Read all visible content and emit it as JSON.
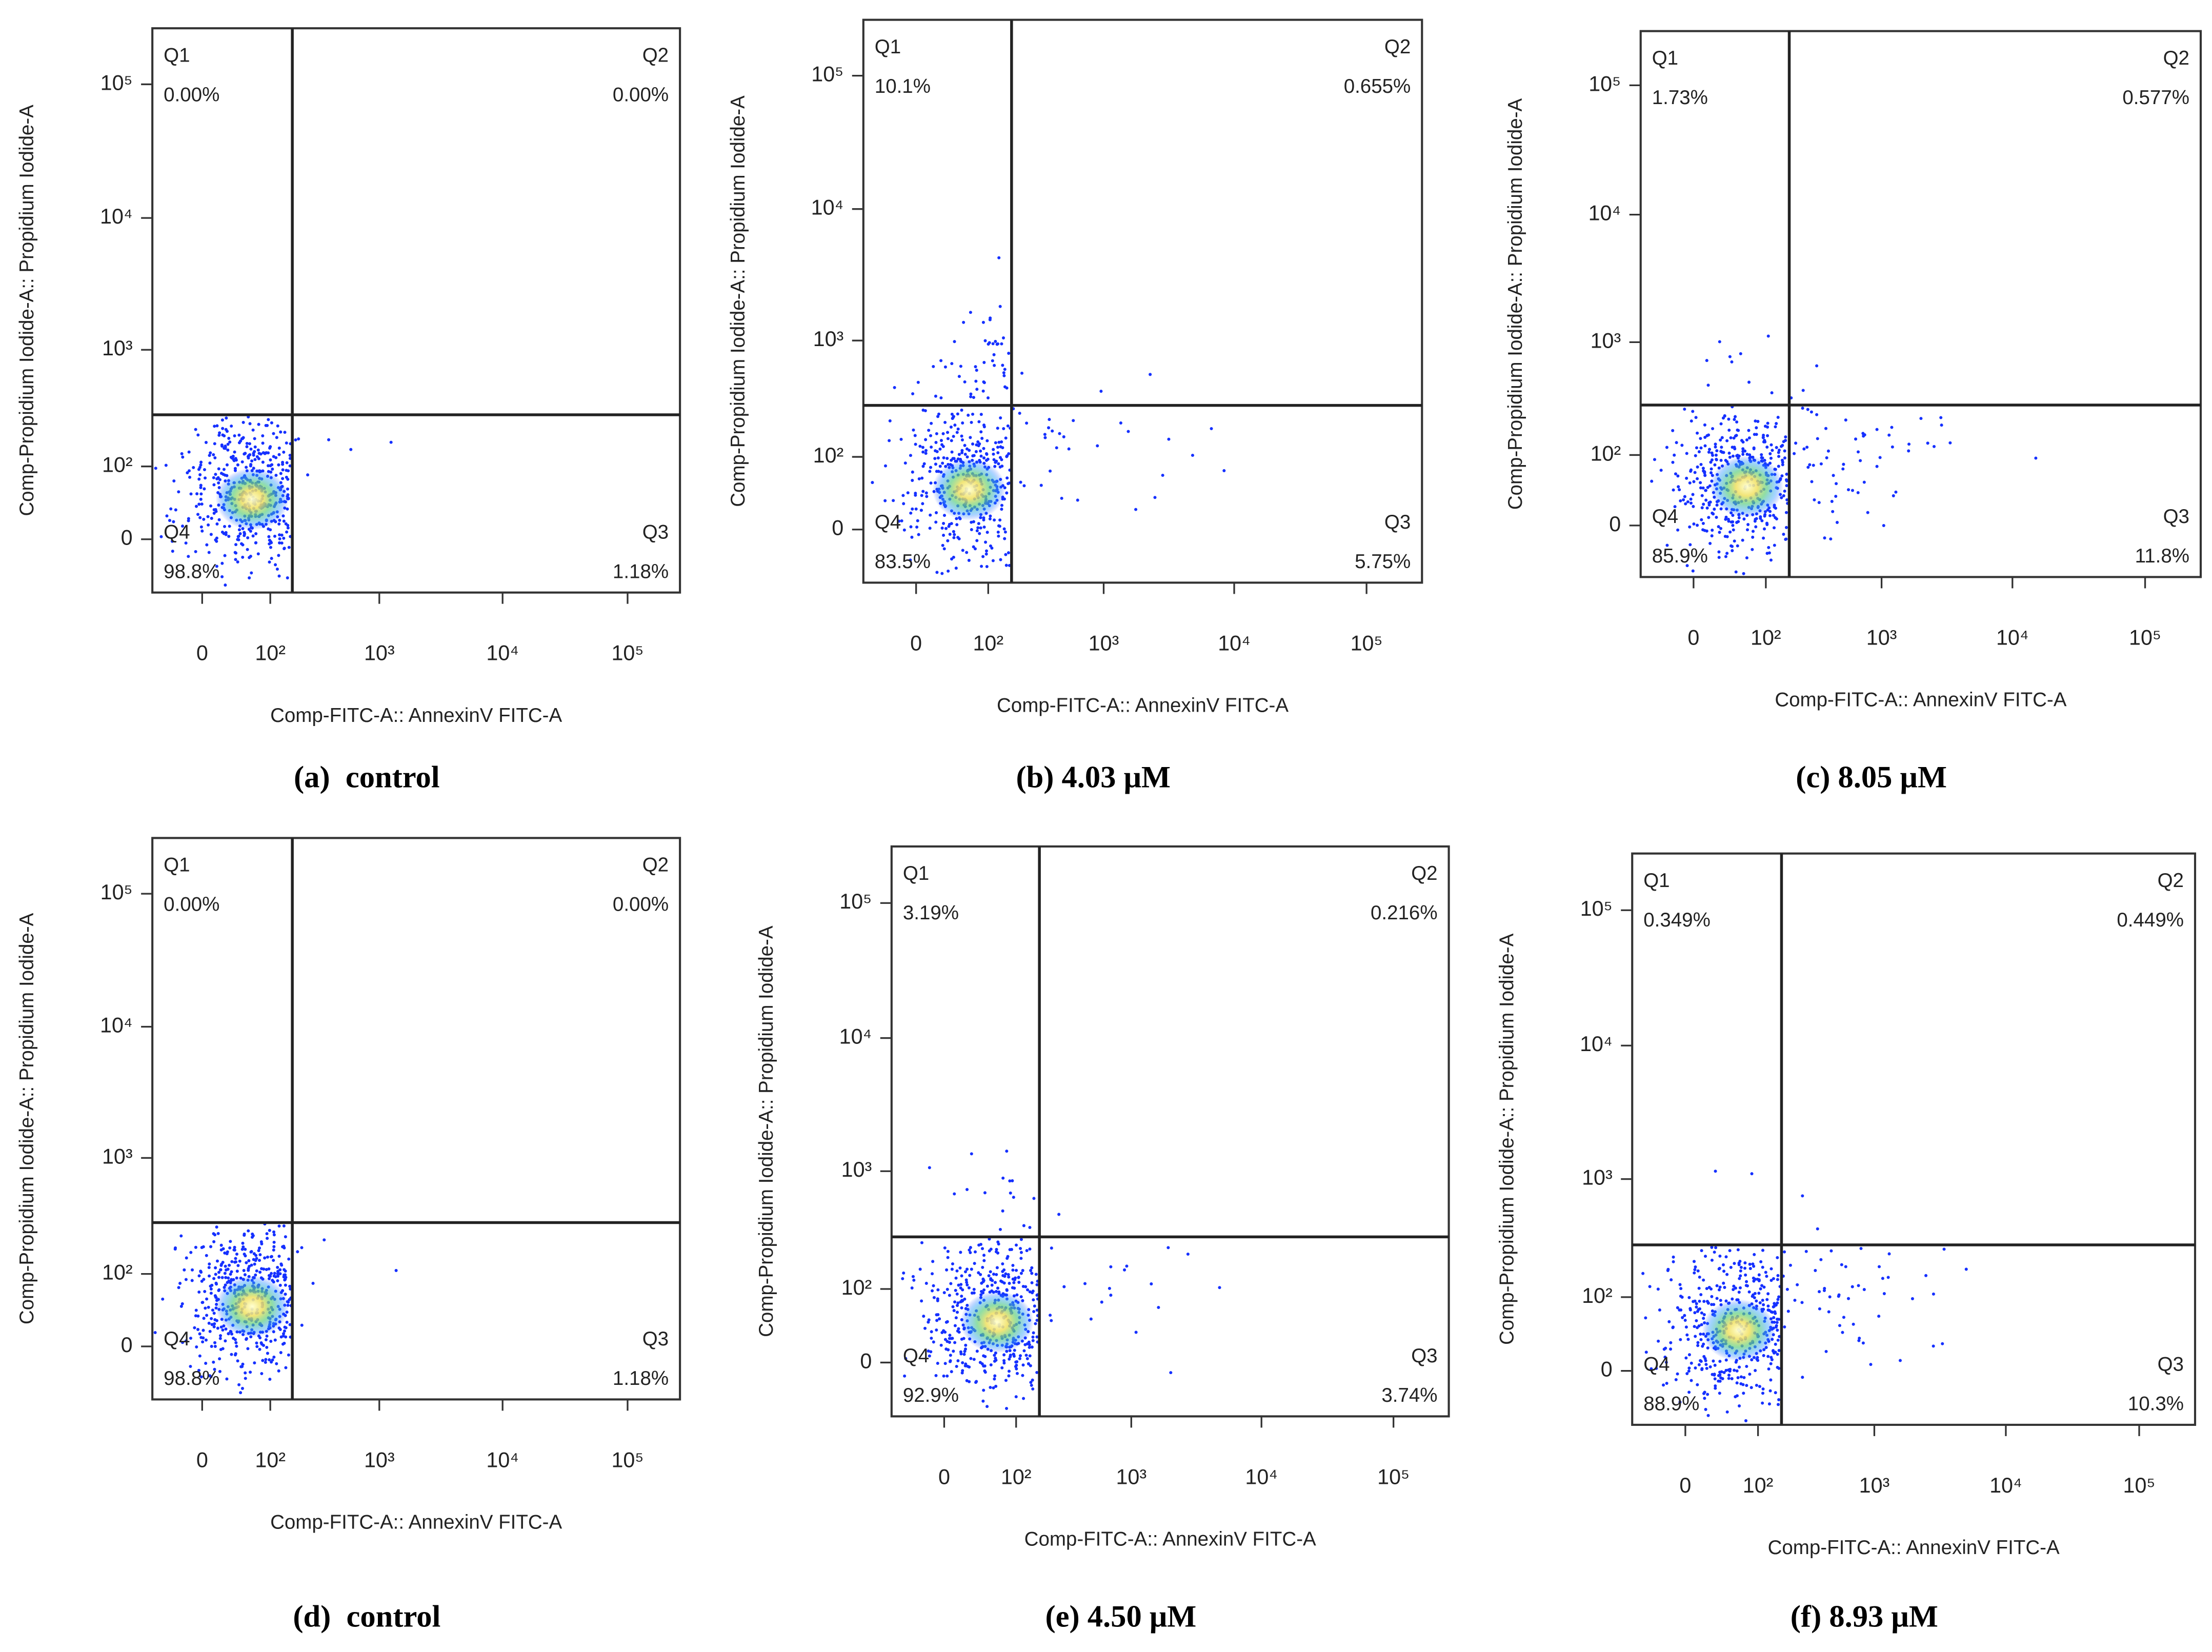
{
  "chart_data": [
    {
      "type": "quadrant-scatter",
      "caption": "(a)  control",
      "xlabel": "Comp-FITC-A:: AnnexinV FITC-A",
      "ylabel": "Comp-Propidium Iodide-A:: Propidium Iodide-A",
      "quadrants": {
        "names": [
          "Q1",
          "Q2",
          "Q3",
          "Q4"
        ],
        "values": [
          0,
          0,
          1.18,
          98.8
        ],
        "value_labels": [
          "0.00%",
          "0.00%",
          "1.18%",
          "98.8%"
        ]
      },
      "gate": {
        "x": 170,
        "y": 300
      },
      "xlim": [
        -60,
        262144
      ],
      "ylim": [
        -60,
        262144
      ],
      "xticks": [
        0,
        {
          "value": 100,
          "label": "10²"
        },
        {
          "value": 1000,
          "label": "10³"
        },
        {
          "value": 10000,
          "label": "10⁴"
        },
        {
          "value": 100000,
          "label": "10⁵"
        }
      ],
      "yticks": [
        0,
        {
          "value": 100,
          "label": "10²"
        },
        {
          "value": 1000,
          "label": "10³"
        },
        {
          "value": 10000,
          "label": "10⁴"
        },
        {
          "value": 100000,
          "label": "10⁵"
        }
      ]
    },
    {
      "type": "quadrant-scatter",
      "caption": "(b) 4.03 μM",
      "xlabel": "Comp-FITC-A:: AnnexinV FITC-A",
      "ylabel": "Comp-Propidium Iodide-A:: Propidium Iodide-A",
      "quadrants": {
        "names": [
          "Q1",
          "Q2",
          "Q3",
          "Q4"
        ],
        "values": [
          10.1,
          0.655,
          5.75,
          83.5
        ],
        "value_labels": [
          "10.1%",
          "0.655%",
          "5.75%",
          "83.5%"
        ]
      },
      "gate": {
        "x": 170,
        "y": 300
      },
      "xlim": [
        -60,
        262144
      ],
      "ylim": [
        -60,
        262144
      ],
      "xticks": [
        0,
        {
          "value": 100,
          "label": "10²"
        },
        {
          "value": 1000,
          "label": "10³"
        },
        {
          "value": 10000,
          "label": "10⁴"
        },
        {
          "value": 100000,
          "label": "10⁵"
        }
      ],
      "yticks": [
        0,
        {
          "value": 100,
          "label": "10²"
        },
        {
          "value": 1000,
          "label": "10³"
        },
        {
          "value": 10000,
          "label": "10⁴"
        },
        {
          "value": 100000,
          "label": "10⁵"
        }
      ]
    },
    {
      "type": "quadrant-scatter",
      "caption": "(c) 8.05 μM",
      "xlabel": "Comp-FITC-A:: AnnexinV FITC-A",
      "ylabel": "Comp-Propidium Iodide-A:: Propidium Iodide-A",
      "quadrants": {
        "names": [
          "Q1",
          "Q2",
          "Q3",
          "Q4"
        ],
        "values": [
          1.73,
          0.577,
          11.8,
          85.9
        ],
        "value_labels": [
          "1.73%",
          "0.577%",
          "11.8%",
          "85.9%"
        ]
      },
      "gate": {
        "x": 170,
        "y": 300
      },
      "xlim": [
        -60,
        262144
      ],
      "ylim": [
        -60,
        262144
      ],
      "xticks": [
        0,
        {
          "value": 100,
          "label": "10²"
        },
        {
          "value": 1000,
          "label": "10³"
        },
        {
          "value": 10000,
          "label": "10⁴"
        },
        {
          "value": 100000,
          "label": "10⁵"
        }
      ],
      "yticks": [
        0,
        {
          "value": 100,
          "label": "10²"
        },
        {
          "value": 1000,
          "label": "10³"
        },
        {
          "value": 10000,
          "label": "10⁴"
        },
        {
          "value": 100000,
          "label": "10⁵"
        }
      ]
    },
    {
      "type": "quadrant-scatter",
      "caption": "(d)  control",
      "xlabel": "Comp-FITC-A:: AnnexinV FITC-A",
      "ylabel": "Comp-Propidium Iodide-A:: Propidium Iodide-A",
      "quadrants": {
        "names": [
          "Q1",
          "Q2",
          "Q3",
          "Q4"
        ],
        "values": [
          0,
          0,
          1.18,
          98.8
        ],
        "value_labels": [
          "0.00%",
          "0.00%",
          "1.18%",
          "98.8%"
        ]
      },
      "gate": {
        "x": 170,
        "y": 300
      },
      "xlim": [
        -60,
        262144
      ],
      "ylim": [
        -60,
        262144
      ],
      "xticks": [
        0,
        {
          "value": 100,
          "label": "10²"
        },
        {
          "value": 1000,
          "label": "10³"
        },
        {
          "value": 10000,
          "label": "10⁴"
        },
        {
          "value": 100000,
          "label": "10⁵"
        }
      ],
      "yticks": [
        0,
        {
          "value": 100,
          "label": "10²"
        },
        {
          "value": 1000,
          "label": "10³"
        },
        {
          "value": 10000,
          "label": "10⁴"
        },
        {
          "value": 100000,
          "label": "10⁵"
        }
      ]
    },
    {
      "type": "quadrant-scatter",
      "caption": "(e) 4.50 μM",
      "xlabel": "Comp-FITC-A:: AnnexinV FITC-A",
      "ylabel": "Comp-Propidium Iodide-A:: Propidium Iodide-A",
      "quadrants": {
        "names": [
          "Q1",
          "Q2",
          "Q3",
          "Q4"
        ],
        "values": [
          3.19,
          0.216,
          3.74,
          92.9
        ],
        "value_labels": [
          "3.19%",
          "0.216%",
          "3.74%",
          "92.9%"
        ]
      },
      "gate": {
        "x": 170,
        "y": 300
      },
      "xlim": [
        -60,
        262144
      ],
      "ylim": [
        -60,
        262144
      ],
      "xticks": [
        0,
        {
          "value": 100,
          "label": "10²"
        },
        {
          "value": 1000,
          "label": "10³"
        },
        {
          "value": 10000,
          "label": "10⁴"
        },
        {
          "value": 100000,
          "label": "10⁵"
        }
      ],
      "yticks": [
        0,
        {
          "value": 100,
          "label": "10²"
        },
        {
          "value": 1000,
          "label": "10³"
        },
        {
          "value": 10000,
          "label": "10⁴"
        },
        {
          "value": 100000,
          "label": "10⁵"
        }
      ]
    },
    {
      "type": "quadrant-scatter",
      "caption": "(f) 8.93 μM",
      "xlabel": "Comp-FITC-A:: AnnexinV FITC-A",
      "ylabel": "Comp-Propidium Iodide-A:: Propidium Iodide-A",
      "quadrants": {
        "names": [
          "Q1",
          "Q2",
          "Q3",
          "Q4"
        ],
        "values": [
          0.349,
          0.449,
          10.3,
          88.9
        ],
        "value_labels": [
          "0.349%",
          "0.449%",
          "10.3%",
          "88.9%"
        ]
      },
      "gate": {
        "x": 170,
        "y": 300
      },
      "xlim": [
        -60,
        262144
      ],
      "ylim": [
        -60,
        262144
      ],
      "xticks": [
        0,
        {
          "value": 100,
          "label": "10²"
        },
        {
          "value": 1000,
          "label": "10³"
        },
        {
          "value": 10000,
          "label": "10⁴"
        },
        {
          "value": 100000,
          "label": "10⁵"
        }
      ],
      "yticks": [
        0,
        {
          "value": 100,
          "label": "10²"
        },
        {
          "value": 1000,
          "label": "10³"
        },
        {
          "value": 10000,
          "label": "10⁴"
        },
        {
          "value": 100000,
          "label": "10⁵"
        }
      ]
    }
  ]
}
